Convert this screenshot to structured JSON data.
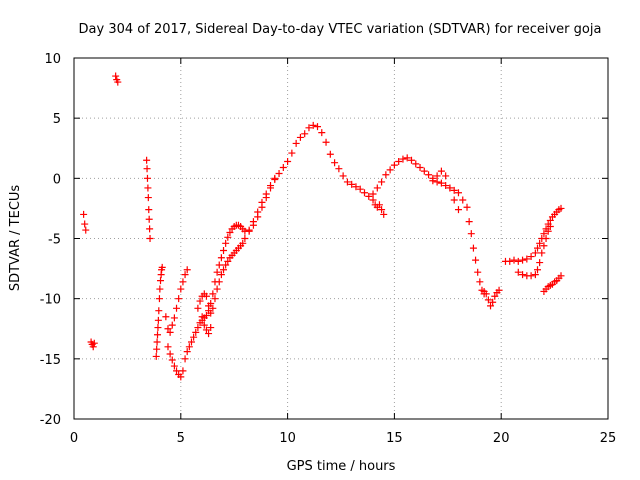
{
  "chart_data": {
    "type": "scatter",
    "title": "Day 304 of 2017, Sidereal Day-to-day VTEC variation (SDTVAR) for receiver goja",
    "xlabel": "GPS time / hours",
    "ylabel": "SDTVAR / TECUs",
    "xlim": [
      0,
      25
    ],
    "ylim": [
      -20,
      10
    ],
    "xticks": [
      0,
      5,
      10,
      15,
      20,
      25
    ],
    "yticks": [
      -20,
      -15,
      -10,
      -5,
      0,
      5,
      10
    ],
    "xtick_labels": [
      "0",
      "5",
      "10",
      "15",
      "20",
      "25"
    ],
    "ytick_labels": [
      "-20",
      "-15",
      "-10",
      "-5",
      "0",
      "5",
      "10"
    ],
    "grid": true,
    "marker": "+",
    "color": "#ff0000",
    "series": [
      {
        "name": "s1",
        "x": [
          0.45,
          0.5,
          0.55
        ],
        "y": [
          -3.0,
          -3.8,
          -4.3
        ]
      },
      {
        "name": "s2",
        "x": [
          0.8,
          0.85,
          0.9,
          0.95
        ],
        "y": [
          -13.6,
          -13.8,
          -14.0,
          -13.7
        ]
      },
      {
        "name": "s3",
        "x": [
          1.95,
          2.0,
          2.05
        ],
        "y": [
          8.5,
          8.2,
          8.0
        ]
      },
      {
        "name": "s4",
        "x": [
          3.4,
          3.42,
          3.44,
          3.46,
          3.48,
          3.5,
          3.52,
          3.54,
          3.56
        ],
        "y": [
          1.5,
          0.8,
          0.0,
          -0.8,
          -1.6,
          -2.6,
          -3.4,
          -4.2,
          -5.0
        ]
      },
      {
        "name": "s5",
        "x": [
          3.85,
          3.87,
          3.89,
          3.91,
          3.93,
          3.95,
          3.97,
          4.0,
          4.02,
          4.05,
          4.08,
          4.1,
          4.13
        ],
        "y": [
          -14.8,
          -14.2,
          -13.6,
          -13.0,
          -12.4,
          -11.8,
          -11.0,
          -10.0,
          -9.2,
          -8.5,
          -8.0,
          -7.6,
          -7.4
        ]
      },
      {
        "name": "s6",
        "x": [
          4.3,
          4.4,
          4.5,
          4.6,
          4.7,
          4.8,
          4.9,
          5.0,
          5.1,
          5.2,
          5.3
        ],
        "y": [
          -11.5,
          -12.5,
          -12.8,
          -12.2,
          -11.6,
          -10.8,
          -10.0,
          -9.2,
          -8.6,
          -8.0,
          -7.6
        ]
      },
      {
        "name": "s7",
        "x": [
          4.4,
          4.5,
          4.6,
          4.7,
          4.8,
          4.9,
          5.0,
          5.1,
          5.2,
          5.3,
          5.4,
          5.5,
          5.6,
          5.7,
          5.8,
          5.9,
          6.0,
          6.1,
          6.2,
          6.3,
          6.4,
          6.5,
          6.6,
          6.7,
          6.8,
          6.9,
          7.0,
          7.1,
          7.2,
          7.3,
          7.4,
          7.5,
          7.6,
          7.7,
          7.8,
          7.9,
          8.0,
          8.2,
          8.4,
          8.6,
          8.8,
          9.0,
          9.2,
          9.4,
          9.6,
          9.8,
          10.0,
          10.2,
          10.4,
          10.6,
          10.8,
          11.0,
          11.2,
          11.4,
          11.6,
          11.8,
          12.0,
          12.2,
          12.4,
          12.6,
          12.8,
          13.0,
          13.2,
          13.4,
          13.6,
          13.8,
          14.0,
          14.2,
          14.4,
          14.6,
          14.8,
          15.0,
          15.2,
          15.4,
          15.6,
          15.8,
          16.0,
          16.2,
          16.4,
          16.6,
          16.8,
          17.0,
          17.2,
          17.4,
          17.6,
          17.8,
          18.0
        ],
        "y": [
          -14.0,
          -14.6,
          -15.1,
          -15.6,
          -16.0,
          -16.3,
          -16.5,
          -16.0,
          -15.0,
          -14.4,
          -14.0,
          -13.6,
          -13.2,
          -12.8,
          -12.4,
          -12.0,
          -11.8,
          -11.6,
          -11.4,
          -11.0,
          -10.4,
          -9.6,
          -8.6,
          -7.8,
          -7.2,
          -6.6,
          -6.0,
          -5.4,
          -4.9,
          -4.5,
          -4.2,
          -4.0,
          -3.9,
          -3.9,
          -4.0,
          -4.2,
          -4.4,
          -4.3,
          -3.9,
          -3.2,
          -2.4,
          -1.6,
          -0.8,
          -0.1,
          0.4,
          0.9,
          1.4,
          2.1,
          2.9,
          3.4,
          3.7,
          4.2,
          4.4,
          4.3,
          3.8,
          3.0,
          2.0,
          1.3,
          0.8,
          0.2,
          -0.3,
          -0.5,
          -0.7,
          -0.9,
          -1.2,
          -1.5,
          -1.3,
          -0.8,
          -0.3,
          0.3,
          0.7,
          1.1,
          1.4,
          1.6,
          1.7,
          1.5,
          1.2,
          0.9,
          0.6,
          0.3,
          0.0,
          -0.3,
          -0.4,
          -0.6,
          -0.8,
          -1.0,
          -1.2
        ]
      },
      {
        "name": "s8",
        "x": [
          5.8,
          5.9,
          6.0,
          6.1,
          6.2,
          6.3,
          6.4,
          6.5,
          6.6,
          6.7,
          6.8,
          6.9,
          7.0,
          7.1,
          7.2,
          7.3,
          7.4,
          7.5,
          7.6,
          7.7,
          7.8,
          7.9,
          8.0,
          8.2,
          8.4,
          8.6,
          8.8,
          9.0,
          9.2,
          9.4
        ],
        "y": [
          -10.8,
          -10.2,
          -9.8,
          -9.6,
          -9.8,
          -10.6,
          -11.2,
          -10.8,
          -10.0,
          -9.2,
          -8.6,
          -8.0,
          -7.6,
          -7.2,
          -6.9,
          -6.6,
          -6.4,
          -6.2,
          -6.0,
          -5.8,
          -5.6,
          -5.4,
          -5.0,
          -4.4,
          -3.6,
          -2.8,
          -2.0,
          -1.3,
          -0.6,
          0.0
        ]
      },
      {
        "name": "s9",
        "x": [
          6.0,
          6.1,
          6.2,
          6.3,
          6.4
        ],
        "y": [
          -11.5,
          -12.2,
          -12.6,
          -12.9,
          -12.4
        ]
      },
      {
        "name": "s10",
        "x": [
          14.0,
          14.1,
          14.2,
          14.3,
          14.4,
          14.5
        ],
        "y": [
          -1.8,
          -2.2,
          -2.4,
          -2.2,
          -2.6,
          -3.0
        ]
      },
      {
        "name": "s11",
        "x": [
          16.8,
          17.0,
          17.2,
          17.4,
          17.6,
          17.8,
          18.0,
          18.2,
          18.4,
          18.5,
          18.6,
          18.7,
          18.8,
          18.9,
          19.0,
          19.1,
          19.2
        ],
        "y": [
          -0.2,
          0.2,
          0.6,
          0.2,
          -0.8,
          -1.8,
          -2.6,
          -1.8,
          -2.4,
          -3.6,
          -4.6,
          -5.8,
          -6.8,
          -7.8,
          -8.6,
          -9.3,
          -9.6
        ]
      },
      {
        "name": "s12",
        "x": [
          19.2,
          19.3,
          19.4,
          19.5,
          19.6,
          19.7,
          19.8,
          19.9
        ],
        "y": [
          -9.4,
          -9.6,
          -10.1,
          -10.6,
          -10.3,
          -9.8,
          -9.5,
          -9.3
        ]
      },
      {
        "name": "s13",
        "x": [
          20.2,
          20.4,
          20.6,
          20.8,
          21.0,
          21.2,
          21.4,
          21.6,
          21.7,
          21.8,
          21.9,
          22.0,
          22.1,
          22.2,
          22.3,
          22.4,
          22.5,
          22.6,
          22.7,
          22.8
        ],
        "y": [
          -6.9,
          -6.9,
          -6.8,
          -6.9,
          -6.8,
          -6.7,
          -6.5,
          -6.2,
          -5.8,
          -5.4,
          -5.0,
          -4.6,
          -4.2,
          -3.8,
          -3.5,
          -3.2,
          -3.0,
          -2.8,
          -2.6,
          -2.5
        ]
      },
      {
        "name": "s14",
        "x": [
          20.8,
          21.0,
          21.2,
          21.4,
          21.6,
          21.7,
          21.8,
          21.9,
          22.0,
          22.1,
          22.2,
          22.3
        ],
        "y": [
          -7.8,
          -8.0,
          -8.1,
          -8.1,
          -8.0,
          -7.6,
          -7.0,
          -6.2,
          -5.6,
          -5.0,
          -4.4,
          -4.0
        ]
      },
      {
        "name": "s15",
        "x": [
          22.0,
          22.1,
          22.2,
          22.3,
          22.4,
          22.5,
          22.6,
          22.7,
          22.8
        ],
        "y": [
          -9.4,
          -9.2,
          -9.0,
          -8.9,
          -8.8,
          -8.6,
          -8.5,
          -8.3,
          -8.1
        ]
      }
    ]
  }
}
